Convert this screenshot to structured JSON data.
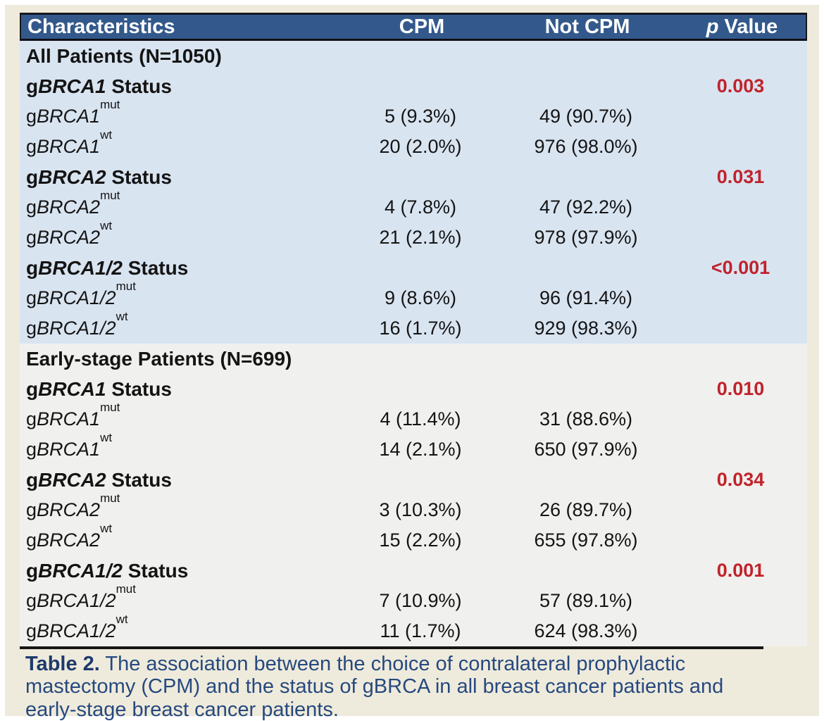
{
  "table": {
    "header": {
      "characteristics": "Characteristics",
      "cpm": "CPM",
      "not_cpm": "Not CPM",
      "p_italic": "p",
      "p_rest": " Value"
    },
    "colors": {
      "header_bg": "#33598C",
      "section_all_bg": "#D9E4F1",
      "section_early_bg": "#F0F0EE",
      "p_value_red": "#C0232B",
      "panel_cream": "#EFEBDC",
      "caption_navy": "#26497F"
    },
    "sections": [
      {
        "name": "all-patients",
        "bg": "#D9E4F1",
        "rows": [
          {
            "type": "section-hdr",
            "text": "All Patients (N=1050)"
          },
          {
            "type": "status",
            "pre": "g",
            "gene": "BRCA1",
            "rest": " Status",
            "p": "0.003"
          },
          {
            "type": "data",
            "pre": "g",
            "gene": "BRCA1",
            "sup": "mut",
            "cpm": "5 (9.3%)",
            "not_cpm": "49 (90.7%)"
          },
          {
            "type": "data",
            "pre": "g",
            "gene": "BRCA1",
            "sup": "wt",
            "cpm": "20 (2.0%)",
            "not_cpm": "976 (98.0%)"
          },
          {
            "type": "status",
            "pre": "g",
            "gene": "BRCA2",
            "rest": " Status",
            "p": "0.031"
          },
          {
            "type": "data",
            "pre": "g",
            "gene": "BRCA2",
            "sup": "mut",
            "cpm": "4 (7.8%)",
            "not_cpm": "47 (92.2%)"
          },
          {
            "type": "data",
            "pre": "g",
            "gene": "BRCA2",
            "sup": "wt",
            "cpm": "21 (2.1%)",
            "not_cpm": "978 (97.9%)"
          },
          {
            "type": "status",
            "pre": "g",
            "gene": "BRCA1/2",
            "rest": " Status",
            "p": "<0.001"
          },
          {
            "type": "data",
            "pre": "g",
            "gene": "BRCA1/2",
            "sup": "mut",
            "cpm": "9 (8.6%)",
            "not_cpm": "96 (91.4%)"
          },
          {
            "type": "data",
            "pre": "g",
            "gene": "BRCA1/2",
            "sup": "wt",
            "cpm": "16 (1.7%)",
            "not_cpm": "929 (98.3%)"
          }
        ]
      },
      {
        "name": "early-stage-patients",
        "bg": "#F0F0EE",
        "rows": [
          {
            "type": "section-hdr",
            "text": "Early-stage Patients (N=699)"
          },
          {
            "type": "status",
            "pre": "g",
            "gene": "BRCA1",
            "rest": " Status",
            "p": "0.010"
          },
          {
            "type": "data",
            "pre": "g",
            "gene": "BRCA1",
            "sup": "mut",
            "cpm": "4 (11.4%)",
            "not_cpm": "31 (88.6%)"
          },
          {
            "type": "data",
            "pre": "g",
            "gene": "BRCA1",
            "sup": "wt",
            "cpm": "14 (2.1%)",
            "not_cpm": "650 (97.9%)"
          },
          {
            "type": "status",
            "pre": "g",
            "gene": "BRCA2",
            "rest": " Status",
            "p": "0.034"
          },
          {
            "type": "data",
            "pre": "g",
            "gene": "BRCA2",
            "sup": "mut",
            "cpm": "3 (10.3%)",
            "not_cpm": "26 (89.7%)"
          },
          {
            "type": "data",
            "pre": "g",
            "gene": "BRCA2",
            "sup": "wt",
            "cpm": "15 (2.2%)",
            "not_cpm": "655 (97.8%)"
          },
          {
            "type": "status",
            "pre": "g",
            "gene": "BRCA1/2",
            "rest": " Status",
            "p": "0.001"
          },
          {
            "type": "data",
            "pre": "g",
            "gene": "BRCA1/2",
            "sup": "mut",
            "cpm": "7 (10.9%)",
            "not_cpm": "57 (89.1%)"
          },
          {
            "type": "data",
            "pre": "g",
            "gene": "BRCA1/2",
            "sup": "wt",
            "cpm": "11 (1.7%)",
            "not_cpm": "624 (98.3%)"
          }
        ]
      }
    ]
  },
  "caption": {
    "label": "Table 2.",
    "text": " The association between the choice of contralateral prophylactic mastectomy (CPM) and the status of gBRCA in all breast cancer patients and early-stage breast cancer patients."
  }
}
